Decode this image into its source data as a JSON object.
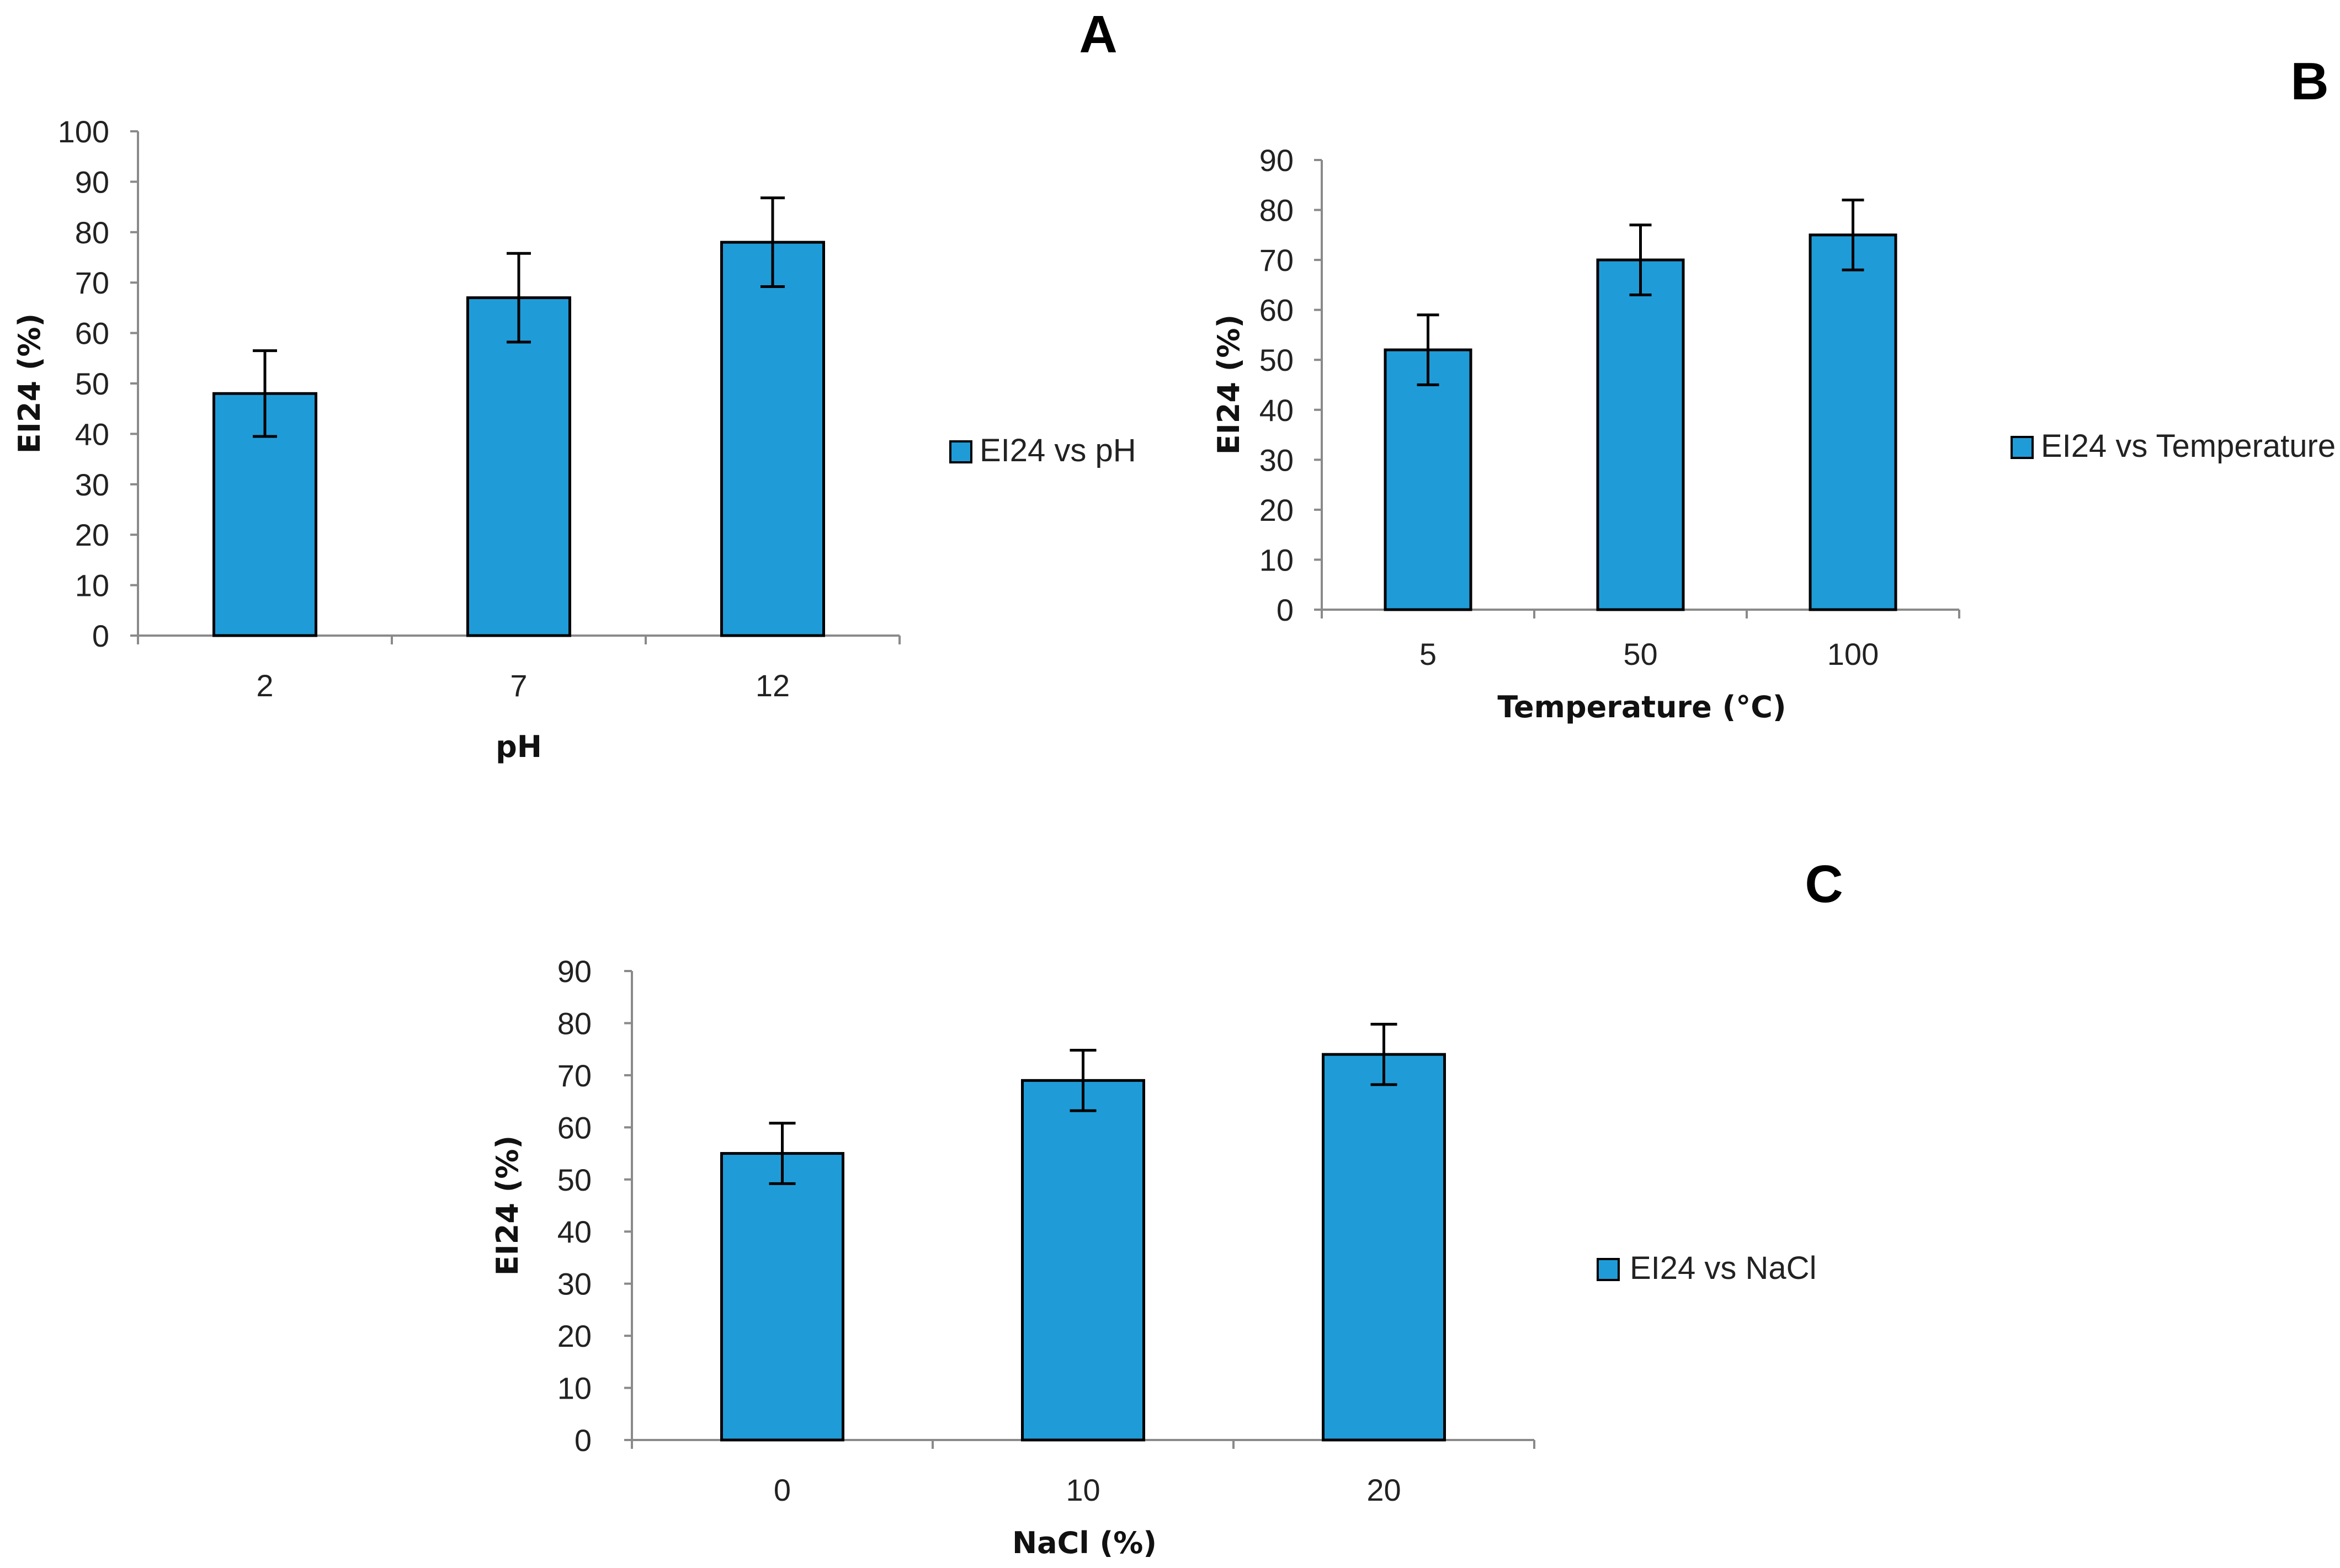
{
  "colors": {
    "bar_fill": "#1f9cd8",
    "bar_stroke": "#000000",
    "axis": "#8a8a8a"
  },
  "chart_data": [
    {
      "id": "A",
      "panel_label": "A",
      "type": "bar",
      "categories": [
        "2",
        "7",
        "12"
      ],
      "values": [
        48,
        67,
        78
      ],
      "errors": [
        8.5,
        8.8,
        8.8
      ],
      "xlabel": "pH",
      "ylabel": "EI24 (%)",
      "ylim": [
        0,
        100
      ],
      "yticks": [
        0,
        10,
        20,
        30,
        40,
        50,
        60,
        70,
        80,
        90,
        100
      ],
      "legend": "EI24 vs pH",
      "legend_position": "right"
    },
    {
      "id": "B",
      "panel_label": "B",
      "type": "bar",
      "categories": [
        "5",
        "50",
        "100"
      ],
      "values": [
        52,
        70,
        75
      ],
      "errors": [
        7,
        7,
        7
      ],
      "xlabel": "Temperature (°C)",
      "ylabel": "EI24 (%)",
      "ylim": [
        0,
        90
      ],
      "yticks": [
        0,
        10,
        20,
        30,
        40,
        50,
        60,
        70,
        80,
        90
      ],
      "legend": "EI24 vs Temperature",
      "legend_position": "right"
    },
    {
      "id": "C",
      "panel_label": "C",
      "type": "bar",
      "categories": [
        "0",
        "10",
        "20"
      ],
      "values": [
        55,
        69,
        74
      ],
      "errors": [
        5.8,
        5.8,
        5.8
      ],
      "xlabel": "NaCl (%)",
      "ylabel": "EI24 (%)",
      "ylim": [
        0,
        90
      ],
      "yticks": [
        0,
        10,
        20,
        30,
        40,
        50,
        60,
        70,
        80,
        90
      ],
      "legend": "EI24 vs NaCl",
      "legend_position": "right"
    }
  ]
}
